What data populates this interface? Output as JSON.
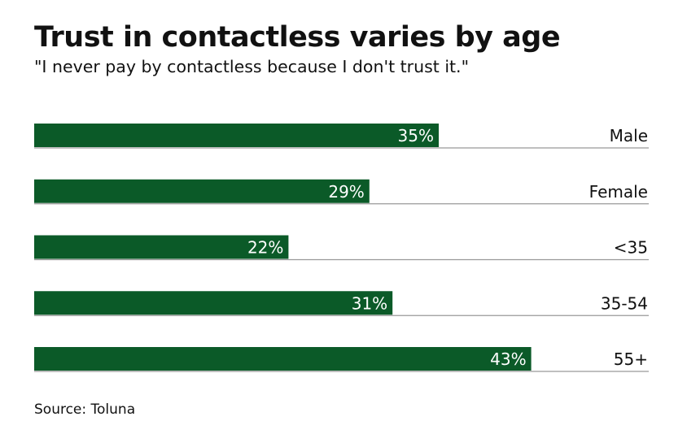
{
  "chart_data": {
    "type": "bar",
    "orientation": "horizontal",
    "title": "Trust in contactless varies by age",
    "subtitle": "\"I never pay by contactless because I don't trust it.\"",
    "categories": [
      "Male",
      "Female",
      "<35",
      "35-54",
      "55+"
    ],
    "values": [
      35,
      29,
      22,
      31,
      43
    ],
    "value_labels": [
      "35%",
      "29%",
      "22%",
      "31%",
      "43%"
    ],
    "unit": "%",
    "xlim": [
      0,
      53
    ],
    "grid": false,
    "legend": "none",
    "source": "Source: Toluna",
    "colors": {
      "bar": "#0b5a28",
      "baseline": "#999999"
    }
  }
}
